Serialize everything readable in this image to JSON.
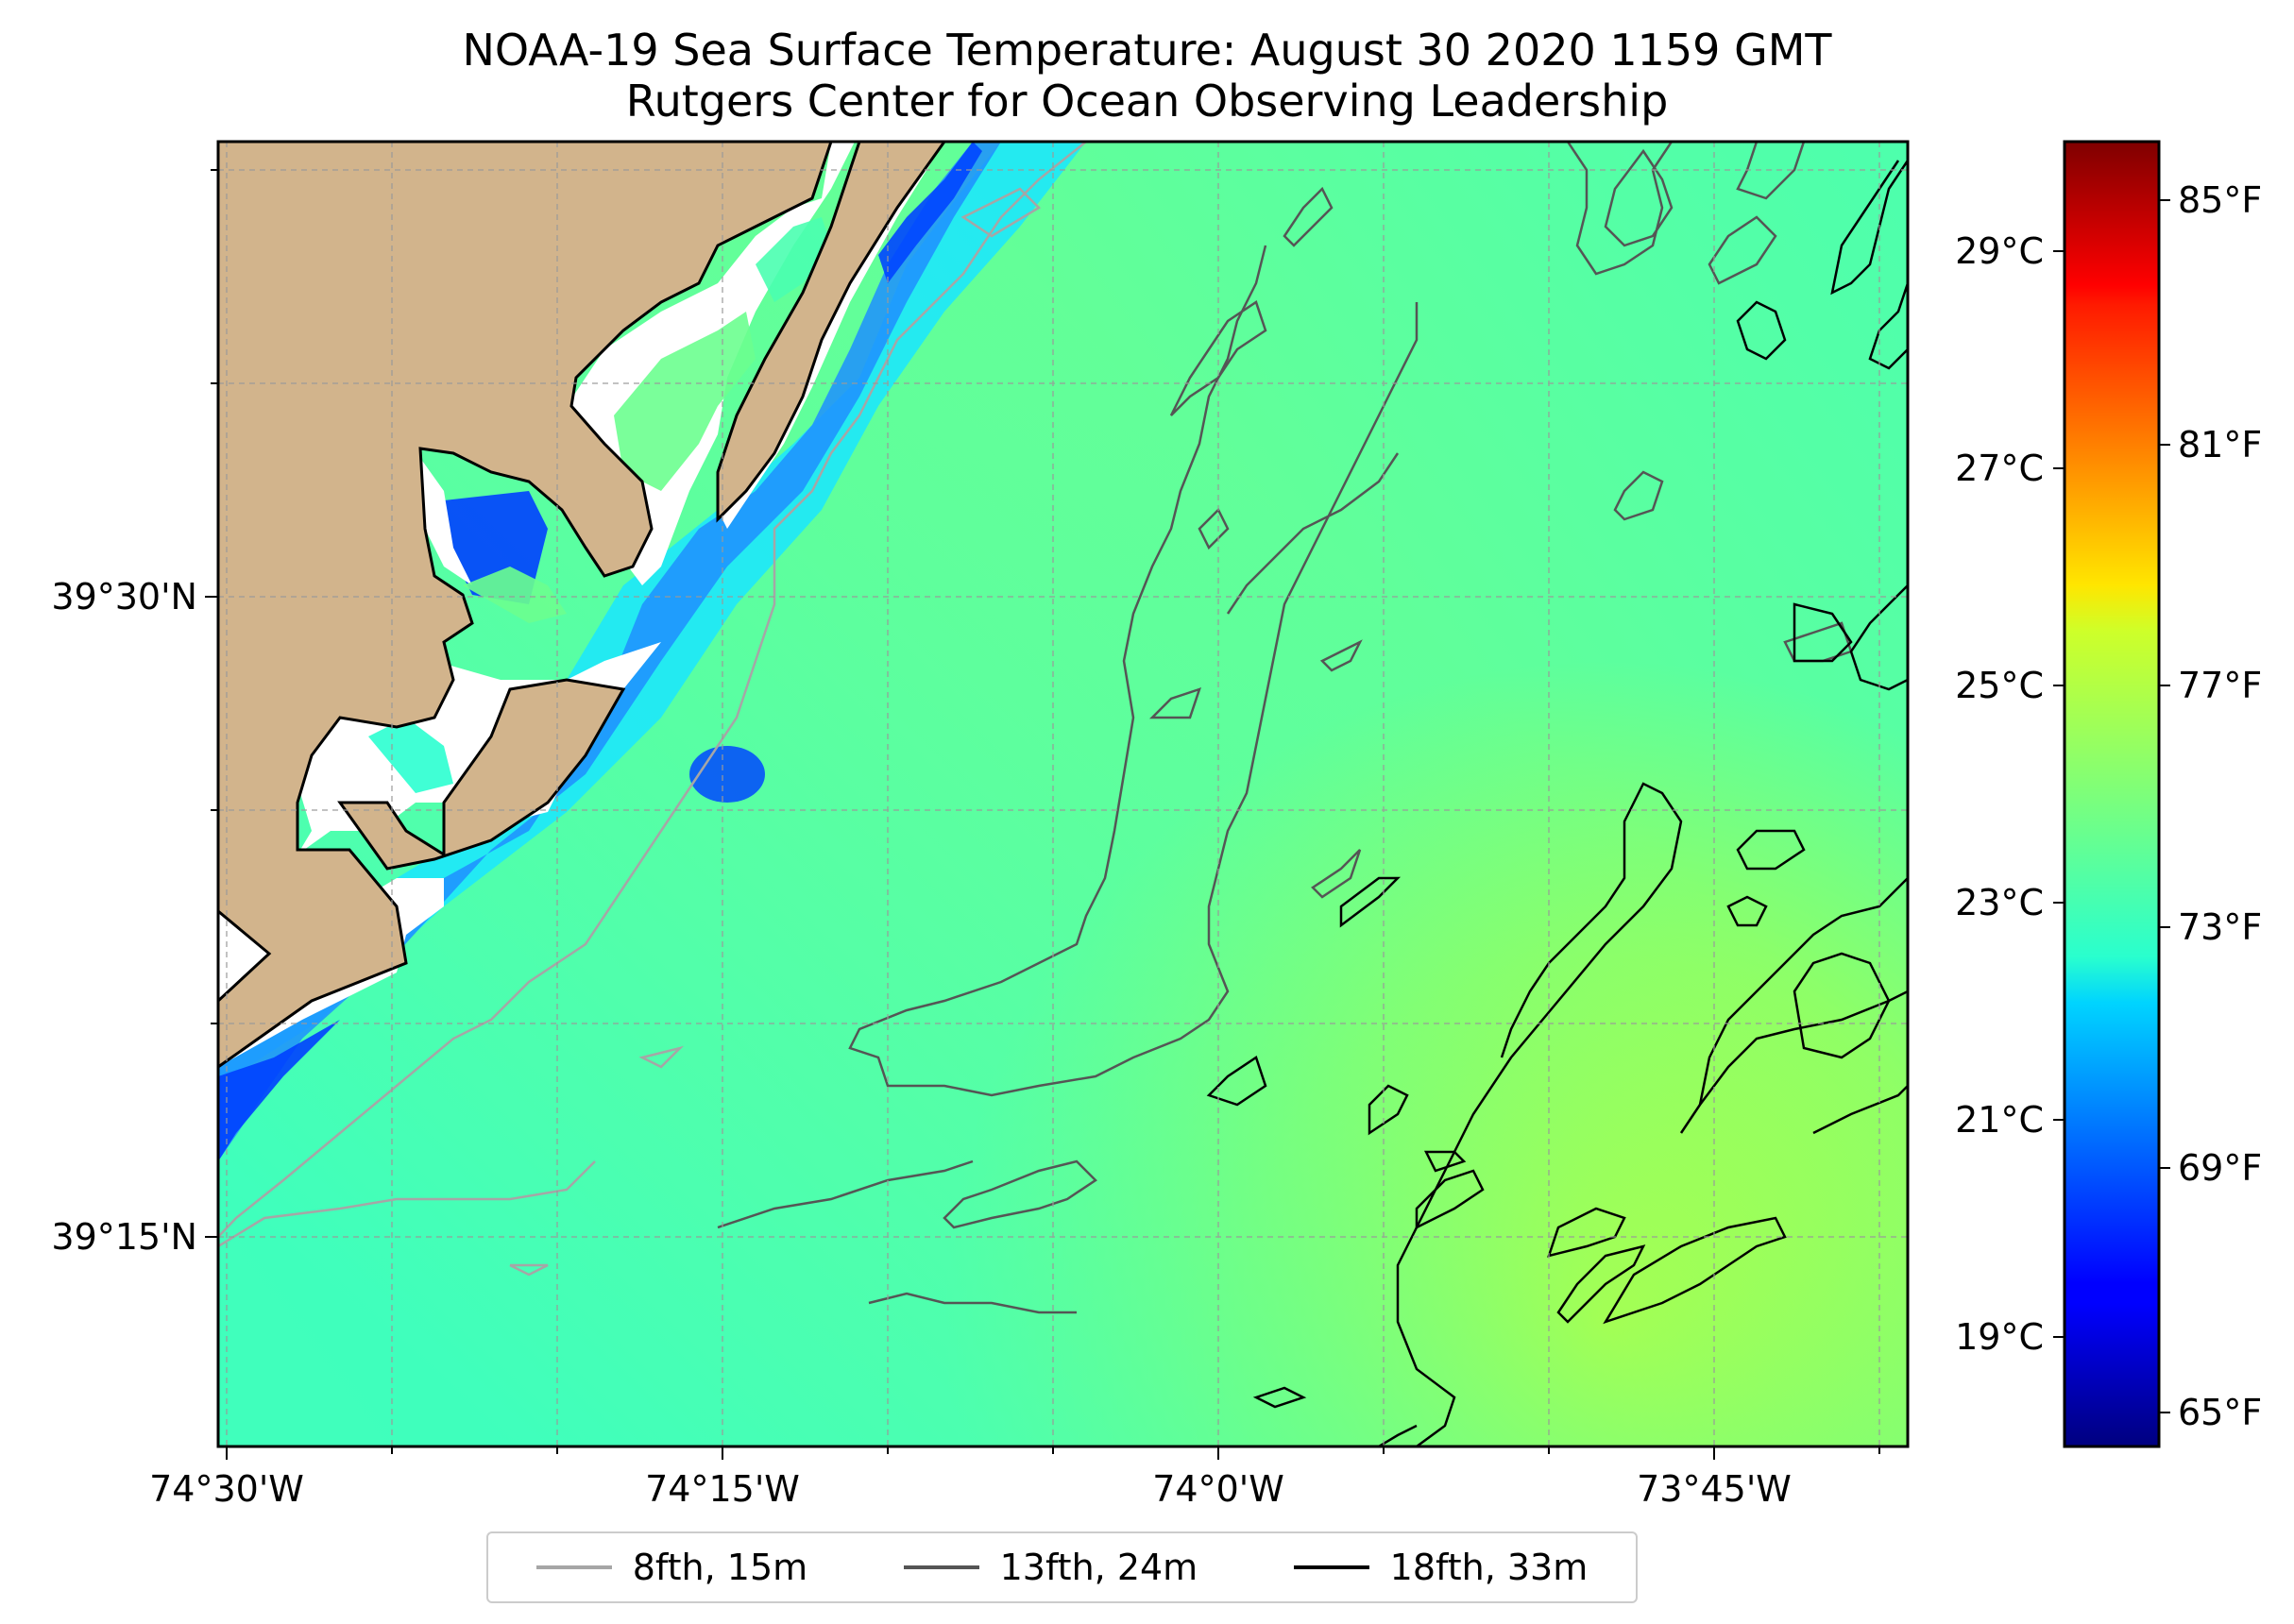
{
  "title": {
    "line1": "NOAA-19 Sea Surface Temperature: August 30 2020 1159 GMT",
    "line2": "Rutgers Center for Ocean Observing Leadership"
  },
  "axes": {
    "x_ticks": [
      "74°30'W",
      "74°15'W",
      "74°0'W",
      "73°45'W"
    ],
    "y_ticks": [
      "39°30'N",
      "39°15'N"
    ],
    "grid": true
  },
  "colorbar": {
    "colormap": "jet",
    "celsius_ticks": [
      "29°C",
      "27°C",
      "25°C",
      "23°C",
      "21°C",
      "19°C"
    ],
    "fahrenheit_ticks": [
      "85°F",
      "81°F",
      "77°F",
      "73°F",
      "69°F",
      "65°F"
    ]
  },
  "legend": {
    "items": [
      {
        "label": "8fth, 15m",
        "color": "#a6a6a6"
      },
      {
        "label": "13fth, 24m",
        "color": "#555555"
      },
      {
        "label": "18fth, 33m",
        "color": "#000000"
      }
    ]
  },
  "colors": {
    "land": "#d2b48c",
    "coast": "#000000"
  }
}
